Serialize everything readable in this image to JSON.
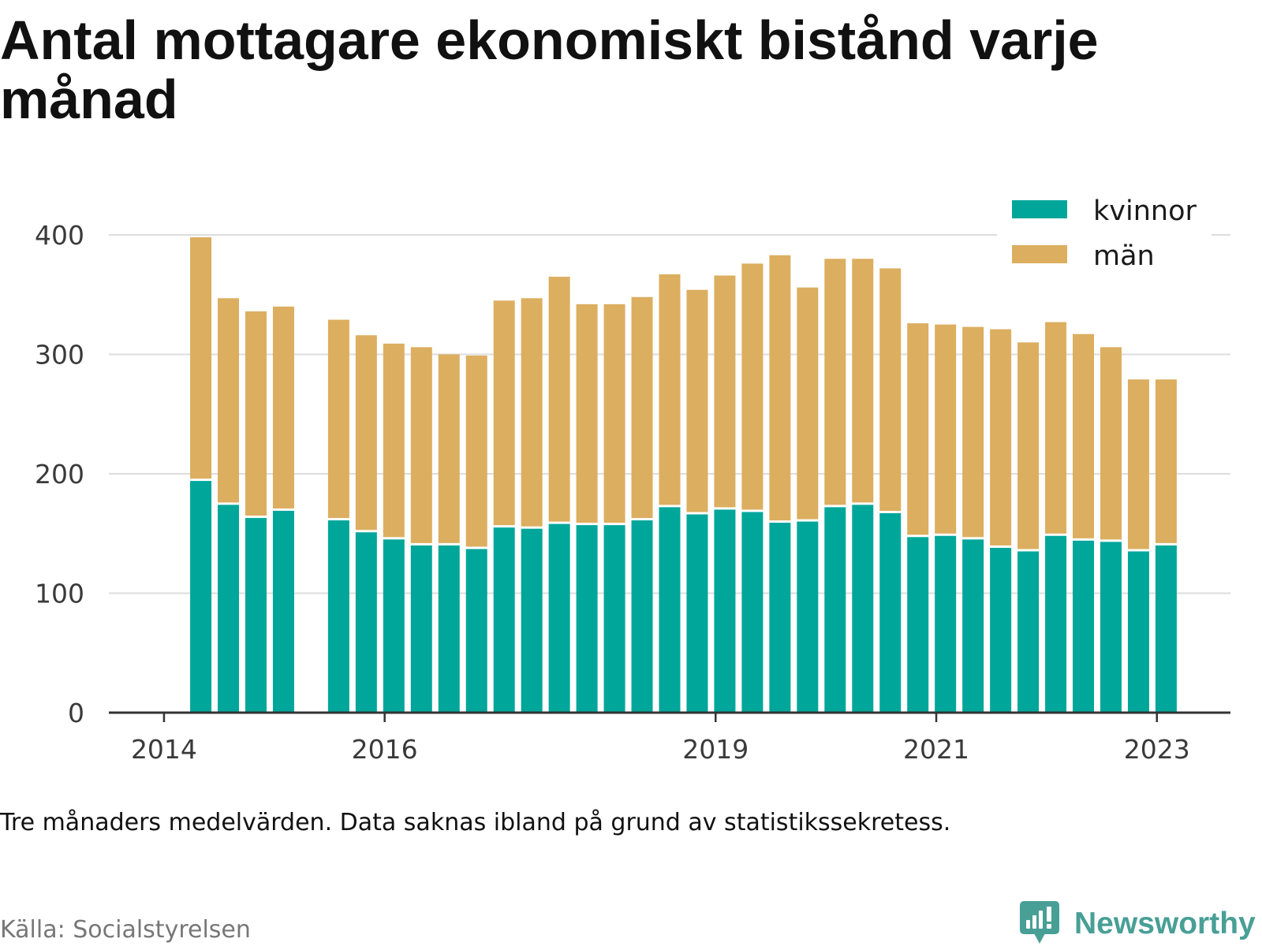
{
  "chart_data": {
    "type": "bar",
    "stacked": true,
    "title": "Antal mottagare ekonomiskt bistånd varje månad",
    "note": "Tre månaders medelvärden. Data saknas ibland på grund av statistikssekretess.",
    "source": "Källa: Socialstyrelsen",
    "x": [
      "2014-05",
      "2014-08",
      "2014-11",
      "2015-02",
      "2015-05",
      "2015-08",
      "2015-11",
      "2016-02",
      "2016-05",
      "2016-08",
      "2016-11",
      "2017-02",
      "2017-05",
      "2017-08",
      "2017-11",
      "2018-02",
      "2018-05",
      "2018-08",
      "2018-11",
      "2019-02",
      "2019-05",
      "2019-08",
      "2019-11",
      "2020-02",
      "2020-05",
      "2020-08",
      "2020-11",
      "2021-02",
      "2021-05",
      "2021-08",
      "2021-11",
      "2022-02",
      "2022-05",
      "2022-08",
      "2022-11",
      "2023-02"
    ],
    "series": [
      {
        "name": "kvinnor",
        "color": "#00a69a",
        "values": [
          194,
          174,
          163,
          169,
          null,
          161,
          151,
          145,
          140,
          140,
          137,
          155,
          154,
          158,
          157,
          157,
          161,
          172,
          166,
          170,
          168,
          159,
          160,
          172,
          174,
          167,
          147,
          148,
          145,
          138,
          135,
          148,
          144,
          143,
          135,
          140
        ]
      },
      {
        "name": "män",
        "color": "#dcae5f",
        "values": [
          204,
          173,
          173,
          171,
          null,
          168,
          165,
          164,
          166,
          160,
          162,
          190,
          193,
          207,
          185,
          185,
          187,
          195,
          188,
          196,
          208,
          224,
          196,
          208,
          206,
          205,
          179,
          177,
          178,
          183,
          175,
          179,
          173,
          163,
          144,
          139
        ]
      }
    ],
    "xlim": [
      "2013-07",
      "2023-09"
    ],
    "xticks": [
      "2014",
      "2016",
      "2019",
      "2021",
      "2023"
    ],
    "ylim": [
      0,
      400
    ],
    "yticks": [
      0,
      100,
      200,
      300,
      400
    ],
    "grid": true,
    "legend": {
      "position": "top-right"
    }
  },
  "logo": {
    "text": "Newsworthy",
    "icon": "chart-speech-bubble-icon",
    "color": "#489f96"
  },
  "colors": {
    "axis": "#333333",
    "tick_label": "#3a3a3a",
    "grid": "#dddddd",
    "text": "#111111",
    "source": "#777777"
  }
}
